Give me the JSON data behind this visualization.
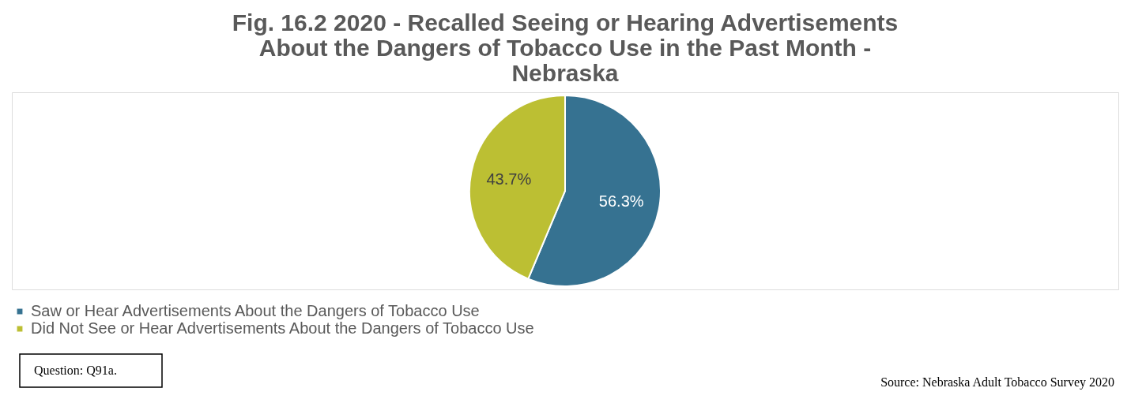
{
  "chart_data": {
    "type": "pie",
    "title": "Fig. 16.2  2020 - Recalled Seeing or Hearing Advertisements About the Dangers of Tobacco Use in the Past Month - Nebraska",
    "categories": [
      "Saw or Hear Advertisements About the Dangers of Tobacco Use",
      "Did Not See or Hear Advertisements About the Dangers of Tobacco Use"
    ],
    "values": [
      56.3,
      43.7
    ],
    "colors": [
      "#367291",
      "#bcbf33"
    ],
    "value_labels": [
      "56.3%",
      "43.7%"
    ],
    "legend": "bottom",
    "annotations": [
      "Question: Q91a.",
      "Source: Nebraska Adult Tobacco Survey 2020"
    ]
  }
}
